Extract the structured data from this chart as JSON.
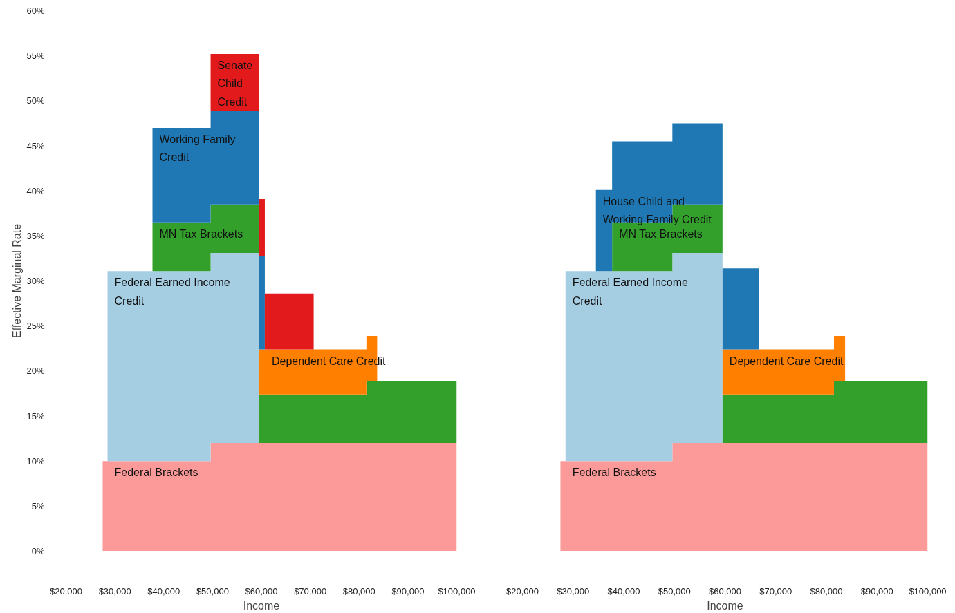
{
  "chart_data": [
    {
      "type": "area",
      "stacked": true,
      "xlabel": "Income",
      "ylabel": "Effective Marginal Rate",
      "grid": false,
      "x": [
        27500,
        28500,
        28500,
        37700,
        37700,
        49600,
        49600,
        59500,
        59500,
        60700,
        60700,
        70700,
        70700,
        81500,
        81500,
        83700,
        83700,
        100000
      ],
      "xlim": [
        20000,
        100000
      ],
      "ylim": [
        0,
        60
      ],
      "xticks": [
        {
          "value": 20000,
          "label": "$20,000"
        },
        {
          "value": 30000,
          "label": "$30,000"
        },
        {
          "value": 40000,
          "label": "$40,000"
        },
        {
          "value": 50000,
          "label": "$50,000"
        },
        {
          "value": 60000,
          "label": "$60,000"
        },
        {
          "value": 70000,
          "label": "$70,000"
        },
        {
          "value": 80000,
          "label": "$80,000"
        },
        {
          "value": 90000,
          "label": "$90,000"
        },
        {
          "value": 100000,
          "label": "$100,000"
        }
      ],
      "yticks": [
        {
          "value": 0,
          "label": "0%"
        },
        {
          "value": 5,
          "label": "5%"
        },
        {
          "value": 10,
          "label": "10%"
        },
        {
          "value": 15,
          "label": "15%"
        },
        {
          "value": 20,
          "label": "20%"
        },
        {
          "value": 25,
          "label": "25%"
        },
        {
          "value": 30,
          "label": "30%"
        },
        {
          "value": 35,
          "label": "35%"
        },
        {
          "value": 40,
          "label": "40%"
        },
        {
          "value": 45,
          "label": "45%"
        },
        {
          "value": 50,
          "label": "50%"
        },
        {
          "value": 55,
          "label": "55%"
        },
        {
          "value": 60,
          "label": "60%"
        }
      ],
      "series": [
        {
          "name": "Federal Brackets",
          "color": "#fb9a99",
          "values": [
            10,
            10,
            10,
            10,
            10,
            10,
            12,
            12,
            12,
            12,
            12,
            12,
            12,
            12,
            12,
            12,
            12,
            12
          ]
        },
        {
          "name": "Federal Earned Income Credit",
          "color": "#a6cee3",
          "values": [
            null,
            null,
            21.1,
            21.1,
            21.1,
            21.1,
            21.1,
            21.1,
            null,
            null,
            null,
            null,
            null,
            null,
            null,
            null,
            null,
            null
          ]
        },
        {
          "name": "MN Tax Brackets",
          "color": "#33a02c",
          "values": [
            null,
            null,
            null,
            null,
            5.4,
            5.4,
            5.4,
            5.4,
            5.4,
            5.4,
            5.4,
            5.4,
            5.4,
            5.4,
            6.9,
            6.9,
            6.9,
            6.9
          ]
        },
        {
          "name": "Dependent Care Credit",
          "color": "#ff7f00",
          "values": [
            null,
            null,
            null,
            null,
            null,
            null,
            null,
            null,
            5,
            5,
            5,
            5,
            5,
            5,
            5,
            5,
            null,
            null
          ]
        },
        {
          "name": "Working Family Credit",
          "color": "#1f78b4",
          "values": [
            null,
            null,
            null,
            null,
            10.5,
            10.5,
            10.4,
            10.4,
            10.4,
            10.4,
            null,
            null,
            null,
            null,
            null,
            null,
            null,
            null
          ]
        },
        {
          "name": "Senate Child Credit",
          "color": "#e31a1c",
          "values": [
            null,
            null,
            null,
            null,
            null,
            null,
            6.3,
            6.3,
            6.3,
            6.3,
            6.2,
            6.2,
            null,
            null,
            null,
            null,
            null,
            null
          ]
        }
      ]
    },
    {
      "type": "area",
      "stacked": true,
      "xlabel": "Income",
      "grid": false,
      "tick_labels": "x",
      "x": [
        27500,
        28500,
        28500,
        34500,
        34500,
        37700,
        37700,
        49600,
        49600,
        59500,
        59500,
        66700,
        66700,
        81500,
        81500,
        83700,
        83700,
        100000
      ],
      "xlim": [
        20000,
        100000
      ],
      "ylim": [
        0,
        60
      ],
      "xticks": [
        {
          "value": 20000,
          "label": "$20,000"
        },
        {
          "value": 30000,
          "label": "$30,000"
        },
        {
          "value": 40000,
          "label": "$40,000"
        },
        {
          "value": 50000,
          "label": "$50,000"
        },
        {
          "value": 60000,
          "label": "$60,000"
        },
        {
          "value": 70000,
          "label": "$70,000"
        },
        {
          "value": 80000,
          "label": "$80,000"
        },
        {
          "value": 90000,
          "label": "$90,000"
        },
        {
          "value": 100000,
          "label": "$100,000"
        }
      ],
      "series": [
        {
          "name": "Federal Brackets",
          "color": "#fb9a99",
          "values": [
            10,
            10,
            10,
            10,
            10,
            10,
            10,
            10,
            12,
            12,
            12,
            12,
            12,
            12,
            12,
            12,
            12,
            12
          ]
        },
        {
          "name": "Federal Earned Income Credit",
          "color": "#a6cee3",
          "values": [
            null,
            null,
            21.1,
            21.1,
            21.1,
            21.1,
            21.1,
            21.1,
            21.1,
            21.1,
            null,
            null,
            null,
            null,
            null,
            null,
            null,
            null
          ]
        },
        {
          "name": "MN Tax Brackets",
          "color": "#33a02c",
          "values": [
            null,
            null,
            null,
            null,
            null,
            null,
            5.4,
            5.4,
            5.4,
            5.4,
            5.4,
            5.4,
            5.4,
            5.4,
            6.9,
            6.9,
            6.9,
            6.9
          ]
        },
        {
          "name": "Dependent Care Credit",
          "color": "#ff7f00",
          "values": [
            null,
            null,
            null,
            null,
            null,
            null,
            null,
            null,
            null,
            null,
            5,
            5,
            5,
            5,
            5,
            5,
            null,
            null
          ]
        },
        {
          "name": "House Child and Working Family Credit",
          "color": "#1f78b4",
          "values": [
            null,
            null,
            null,
            null,
            9,
            9,
            9,
            9,
            9,
            9,
            9,
            9,
            null,
            null,
            null,
            null,
            null,
            null
          ]
        }
      ]
    }
  ]
}
